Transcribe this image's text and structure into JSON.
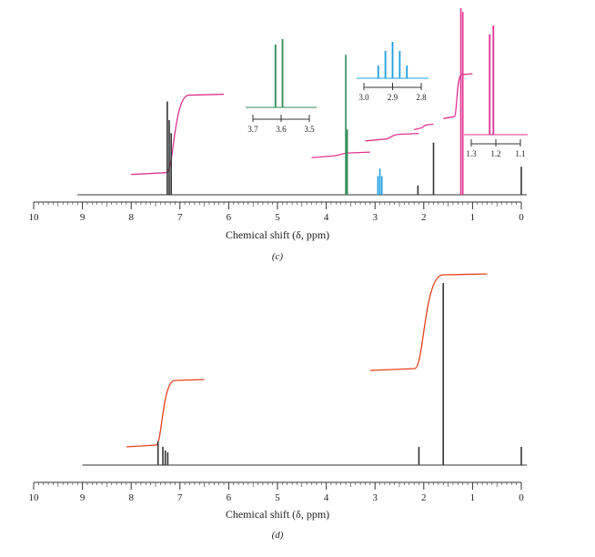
{
  "chart_data": [
    {
      "type": "line",
      "panel_label": "(c)",
      "xlabel": "Chemical shift (δ, ppm)",
      "ylabel": "",
      "xlim": [
        10,
        0
      ],
      "x_ticks": [
        "10",
        "9",
        "8",
        "7",
        "6",
        "5",
        "4",
        "3",
        "2",
        "1",
        "0"
      ],
      "grid": false,
      "peaks": [
        {
          "ppm": 7.26,
          "height": 0.5,
          "color": "#333333"
        },
        {
          "ppm": 7.22,
          "height": 0.4,
          "color": "#333333"
        },
        {
          "ppm": 7.18,
          "height": 0.33,
          "color": "#333333"
        },
        {
          "ppm": 3.6,
          "height": 0.75,
          "color": "#2e8b57"
        },
        {
          "ppm": 3.57,
          "height": 0.35,
          "color": "#2e8b57"
        },
        {
          "ppm": 2.94,
          "height": 0.1,
          "color": "#1e9fe0"
        },
        {
          "ppm": 2.9,
          "height": 0.14,
          "color": "#1e9fe0"
        },
        {
          "ppm": 2.86,
          "height": 0.1,
          "color": "#1e9fe0"
        },
        {
          "ppm": 2.12,
          "height": 0.05,
          "color": "#333333"
        },
        {
          "ppm": 1.8,
          "height": 0.28,
          "color": "#333333"
        },
        {
          "ppm": 1.24,
          "height": 1.0,
          "color": "#e0338f"
        },
        {
          "ppm": 1.2,
          "height": 0.98,
          "color": "#e0338f"
        },
        {
          "ppm": 0.0,
          "height": 0.15,
          "color": "#333333"
        }
      ],
      "integrals": [
        {
          "from": 8.0,
          "to": 6.1,
          "start": 0.06,
          "end": 0.49,
          "color": "#e0338f"
        },
        {
          "from": 4.3,
          "to": 3.1,
          "start": 0.15,
          "end": 0.18,
          "color": "#e0338f"
        },
        {
          "from": 3.2,
          "to": 2.1,
          "start": 0.24,
          "end": 0.28,
          "color": "#e0338f"
        },
        {
          "from": 2.2,
          "to": 1.8,
          "start": 0.3,
          "end": 0.33,
          "color": "#e0338f"
        },
        {
          "from": 1.6,
          "to": 1.0,
          "start": 0.36,
          "end": 0.6,
          "color": "#e0338f"
        }
      ],
      "insets": [
        {
          "ticks": [
            "3.7",
            "3.6",
            "3.5"
          ],
          "range": [
            3.7,
            3.5
          ],
          "color": "#2e8b57",
          "lines": [
            3.62,
            3.595
          ]
        },
        {
          "ticks": [
            "3.0",
            "2.9",
            "2.8"
          ],
          "range": [
            3.0,
            2.8
          ],
          "color": "#1e9fe0",
          "lines": [
            2.95,
            2.925,
            2.9,
            2.875,
            2.85
          ]
        },
        {
          "ticks": [
            "1.3",
            "1.2",
            "1.1"
          ],
          "range": [
            1.3,
            1.1
          ],
          "color": "#e0338f",
          "lines": [
            1.225,
            1.21
          ]
        }
      ]
    },
    {
      "type": "line",
      "panel_label": "(d)",
      "xlabel": "Chemical shift (δ, ppm)",
      "ylabel": "",
      "xlim": [
        10,
        0
      ],
      "x_ticks": [
        "10",
        "9",
        "8",
        "7",
        "6",
        "5",
        "4",
        "3",
        "2",
        "1",
        "0"
      ],
      "grid": false,
      "peaks": [
        {
          "ppm": 7.45,
          "height": 0.13,
          "color": "#333333"
        },
        {
          "ppm": 7.35,
          "height": 0.1,
          "color": "#333333"
        },
        {
          "ppm": 7.3,
          "height": 0.08,
          "color": "#333333"
        },
        {
          "ppm": 7.25,
          "height": 0.07,
          "color": "#333333"
        },
        {
          "ppm": 2.1,
          "height": 0.1,
          "color": "#333333"
        },
        {
          "ppm": 1.6,
          "height": 1.0,
          "color": "#333333"
        },
        {
          "ppm": 0.0,
          "height": 0.1,
          "color": "#333333"
        }
      ],
      "integrals": [
        {
          "from": 8.1,
          "to": 6.5,
          "start": 0.05,
          "end": 0.42,
          "color": "#e5421c"
        },
        {
          "from": 3.1,
          "to": 0.7,
          "start": 0.47,
          "end": 1.0,
          "color": "#e5421c"
        }
      ],
      "insets": []
    }
  ]
}
